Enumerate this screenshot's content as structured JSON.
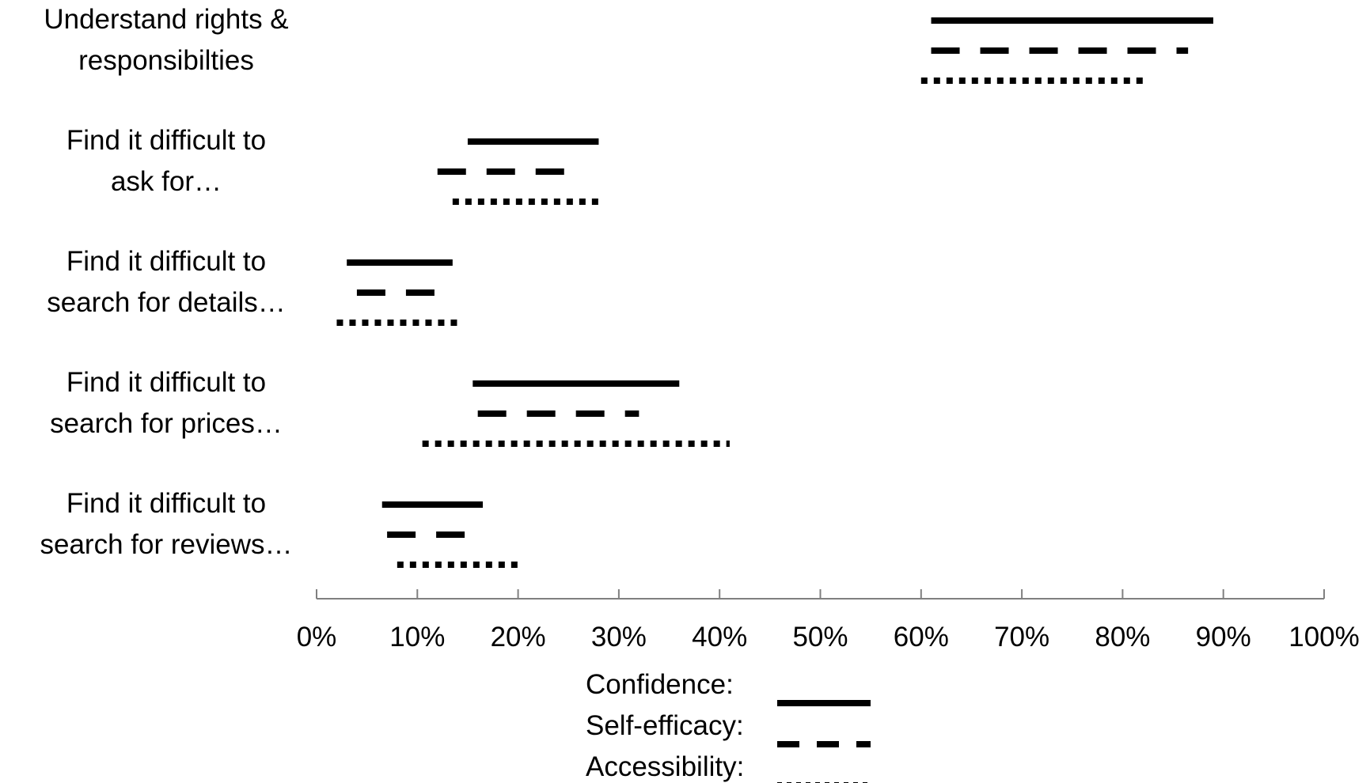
{
  "chart_data": {
    "type": "range",
    "categories": [
      [
        "Understand rights &",
        "responsibilties"
      ],
      [
        "Find it difficult to",
        "ask for…"
      ],
      [
        "Find it difficult to",
        "search for details…"
      ],
      [
        "Find it difficult to",
        "search for prices…"
      ],
      [
        "Find it difficult to",
        "search for reviews…"
      ]
    ],
    "series": [
      {
        "name": "Confidence:",
        "style": "solid",
        "ranges": [
          [
            61,
            89
          ],
          [
            15,
            28
          ],
          [
            3,
            13.5
          ],
          [
            15.5,
            36
          ],
          [
            6.5,
            16.5
          ]
        ]
      },
      {
        "name": "Self-efficacy:",
        "style": "dashed",
        "ranges": [
          [
            61,
            86.5
          ],
          [
            12,
            26.5
          ],
          [
            4,
            12
          ],
          [
            16,
            32
          ],
          [
            7,
            16.5
          ]
        ]
      },
      {
        "name": "Accessibility:",
        "style": "dotted",
        "ranges": [
          [
            60,
            82.5
          ],
          [
            13.5,
            28
          ],
          [
            2,
            14.5
          ],
          [
            10.5,
            41
          ],
          [
            8,
            20.5
          ]
        ]
      }
    ],
    "x_ticks": [
      "0%",
      "10%",
      "20%",
      "30%",
      "40%",
      "50%",
      "60%",
      "70%",
      "80%",
      "90%",
      "100%"
    ],
    "xlim": [
      0,
      100
    ],
    "grid": false,
    "legend": "bottom",
    "colors": {
      "marks": "#000000",
      "axis": "#808080",
      "text": "#000000"
    }
  }
}
